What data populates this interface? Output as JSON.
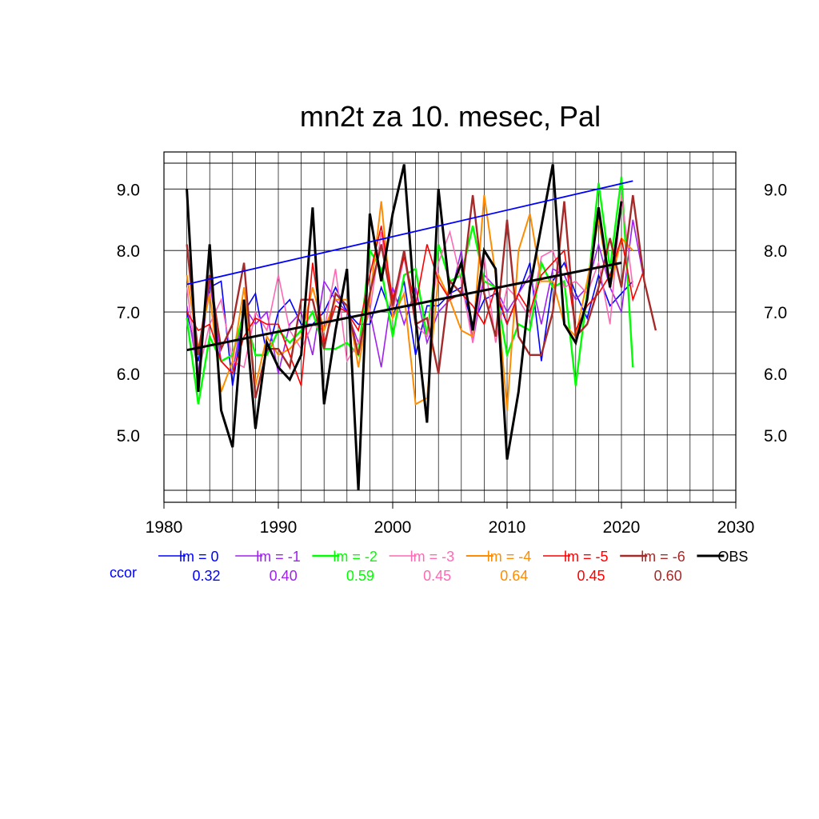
{
  "chart_data": {
    "type": "line",
    "title": "mn2t za 10. mesec, Pal",
    "xlabel": "",
    "ylabel": "",
    "xlim": [
      1980,
      2030
    ],
    "ylim": [
      4.1,
      9.4
    ],
    "x_ticks": [
      1980,
      1990,
      2000,
      2010,
      2020,
      2030
    ],
    "x_tick_labels": [
      "1980",
      "1990",
      "2000",
      "2010",
      "2020",
      "2030"
    ],
    "y_ticks": [
      5.0,
      6.0,
      7.0,
      8.0,
      9.0
    ],
    "y_tick_labels": [
      "5.0",
      "6.0",
      "7.0",
      "8.0",
      "9.0"
    ],
    "y_ticks_right": true,
    "grid": true,
    "ccor_title": "ccor",
    "legend_position": "bottom",
    "series": [
      {
        "name": "lm = 0",
        "color": "#0000ff",
        "width": 1.6,
        "ccor": "0.32",
        "x_start": 1982,
        "values": [
          7.0,
          6.2,
          7.4,
          7.5,
          5.8,
          7.0,
          7.3,
          6.3,
          7.0,
          7.2,
          6.8,
          6.8,
          7.0,
          7.4,
          7.0,
          6.8,
          6.8,
          7.4,
          6.9,
          7.5,
          6.3,
          7.1,
          7.1,
          7.3,
          7.4,
          6.8,
          7.2,
          7.3,
          6.8,
          7.3,
          7.8,
          6.2,
          7.5,
          7.8,
          7.3,
          6.9,
          7.6,
          7.1,
          7.3,
          7.5
        ]
      },
      {
        "name": "lm = -1",
        "color": "#a020f0",
        "width": 1.6,
        "ccor": "0.40",
        "x_start": 1982,
        "values": [
          7.1,
          6.0,
          7.5,
          6.2,
          6.0,
          7.1,
          6.8,
          7.0,
          6.0,
          6.8,
          7.0,
          6.3,
          7.5,
          7.2,
          7.0,
          6.5,
          7.0,
          6.1,
          7.4,
          6.8,
          7.4,
          6.5,
          7.0,
          7.2,
          8.0,
          6.5,
          7.6,
          7.4,
          7.0,
          7.3,
          7.6,
          6.8,
          7.7,
          7.6,
          7.2,
          7.4,
          8.1,
          7.4,
          7.0,
          8.5,
          7.5
        ]
      },
      {
        "name": "lm = -2",
        "color": "#00ff00",
        "width": 2.4,
        "ccor": "0.59",
        "x_start": 1982,
        "values": [
          6.9,
          5.5,
          6.6,
          6.2,
          6.3,
          7.0,
          6.3,
          6.3,
          6.7,
          6.5,
          6.7,
          7.0,
          6.4,
          6.4,
          6.5,
          6.3,
          8.0,
          7.7,
          6.6,
          7.6,
          7.7,
          6.6,
          8.1,
          7.5,
          7.6,
          8.4,
          7.5,
          7.4,
          6.3,
          6.8,
          6.7,
          7.8,
          7.4,
          7.5,
          5.8,
          7.3,
          9.1,
          7.7,
          9.2,
          6.1
        ]
      },
      {
        "name": "lm = -3",
        "color": "#ff69b4",
        "width": 1.6,
        "ccor": "0.45",
        "x_start": 1982,
        "values": [
          7.4,
          6.0,
          6.8,
          7.2,
          6.2,
          6.1,
          7.0,
          6.7,
          7.6,
          6.7,
          6.4,
          6.8,
          6.7,
          7.7,
          6.2,
          6.5,
          7.0,
          8.3,
          7.0,
          7.9,
          6.8,
          6.6,
          7.8,
          8.3,
          7.5,
          6.5,
          7.9,
          6.5,
          7.4,
          7.2,
          6.9,
          7.9,
          8.0,
          7.4,
          7.5,
          7.3,
          7.8,
          6.8,
          8.9,
          7.4
        ]
      },
      {
        "name": "lm = -4",
        "color": "#ff8c00",
        "width": 2.0,
        "ccor": "0.64",
        "x_start": 1982,
        "values": [
          7.6,
          6.4,
          7.3,
          5.7,
          6.2,
          7.4,
          5.8,
          6.6,
          6.3,
          6.4,
          6.6,
          7.4,
          6.7,
          7.2,
          7.2,
          6.1,
          7.2,
          8.8,
          6.9,
          7.3,
          5.5,
          5.6,
          7.6,
          7.2,
          6.7,
          6.6,
          8.9,
          7.6,
          5.4,
          8.0,
          8.6,
          7.5,
          7.5,
          6.8,
          6.6,
          7.5,
          8.5,
          7.4,
          8.2,
          8.0
        ]
      },
      {
        "name": "lm = -5",
        "color": "#ff0000",
        "width": 1.6,
        "ccor": "0.45",
        "x_start": 1982,
        "values": [
          7.0,
          6.7,
          6.8,
          6.2,
          6.0,
          6.6,
          6.9,
          6.8,
          6.8,
          6.3,
          5.8,
          7.8,
          6.5,
          7.1,
          7.0,
          6.7,
          7.6,
          8.4,
          7.2,
          7.9,
          7.1,
          8.1,
          7.5,
          7.2,
          7.3,
          7.1,
          6.8,
          7.4,
          6.8,
          7.3,
          7.0,
          7.6,
          7.8,
          8.0,
          6.7,
          7.1,
          7.3,
          7.6,
          8.2,
          7.2,
          7.7
        ]
      },
      {
        "name": "lm = -6",
        "color": "#a52a2a",
        "width": 2.4,
        "ccor": "0.60",
        "x_start": 1982,
        "values": [
          8.1,
          6.3,
          7.6,
          6.4,
          6.8,
          7.8,
          5.6,
          6.4,
          6.4,
          6.1,
          7.2,
          7.2,
          6.4,
          7.3,
          7.1,
          6.3,
          7.3,
          8.1,
          7.1,
          8.0,
          6.8,
          6.9,
          6.0,
          7.5,
          7.3,
          8.9,
          7.3,
          6.6,
          8.5,
          6.6,
          6.3,
          6.3,
          7.0,
          8.8,
          6.6,
          6.8,
          7.4,
          8.2,
          7.4,
          8.9,
          7.5,
          6.7
        ]
      },
      {
        "name": "OBS",
        "color": "#000000",
        "width": 3.0,
        "ccor": "",
        "x_start": 1982,
        "values": [
          9.0,
          5.7,
          8.1,
          5.4,
          4.8,
          7.2,
          5.1,
          6.5,
          6.1,
          5.9,
          6.3,
          8.7,
          5.5,
          6.7,
          7.7,
          4.1,
          8.6,
          7.5,
          8.6,
          9.4,
          6.9,
          5.2,
          9.0,
          7.3,
          7.8,
          6.7,
          8.0,
          7.7,
          4.6,
          5.7,
          7.4,
          8.4,
          9.4,
          6.8,
          6.5,
          7.2,
          8.7,
          7.4,
          8.8
        ]
      }
    ],
    "trendlines": [
      {
        "name": "lm = 0 trend",
        "color": "#0000ff",
        "width": 1.8,
        "x": [
          1982,
          2021
        ],
        "y": [
          7.45,
          9.13
        ]
      },
      {
        "name": "OBS trend",
        "color": "#000000",
        "width": 3.0,
        "x": [
          1982,
          2020
        ],
        "y": [
          6.38,
          7.8
        ]
      }
    ]
  }
}
